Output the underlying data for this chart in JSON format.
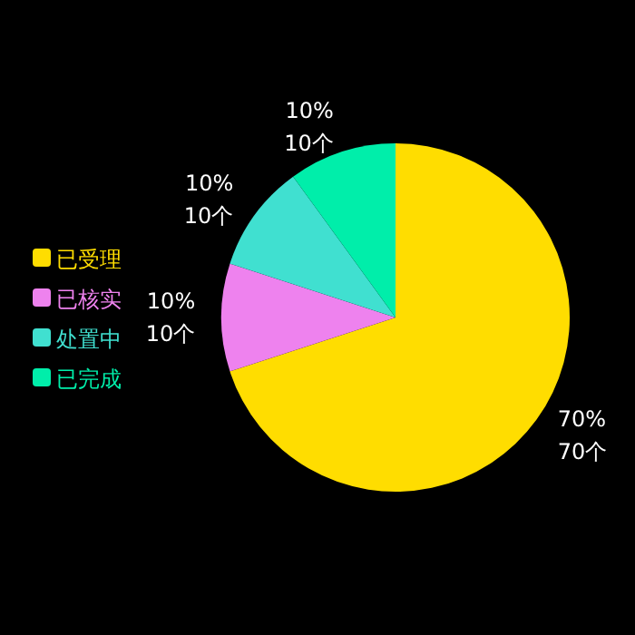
{
  "chart_data": {
    "type": "pie",
    "categories": [
      "已受理",
      "已核实",
      "处置中",
      "已完成"
    ],
    "values": [
      70,
      10,
      10,
      10
    ],
    "colors": [
      "#ffdd00",
      "#ee82ee",
      "#40e0d0",
      "#00eeaa"
    ],
    "value_labels": [
      "70%\n70个",
      "10%\n10个",
      "10%\n10个",
      "10%\n10个"
    ],
    "legend": "left"
  }
}
